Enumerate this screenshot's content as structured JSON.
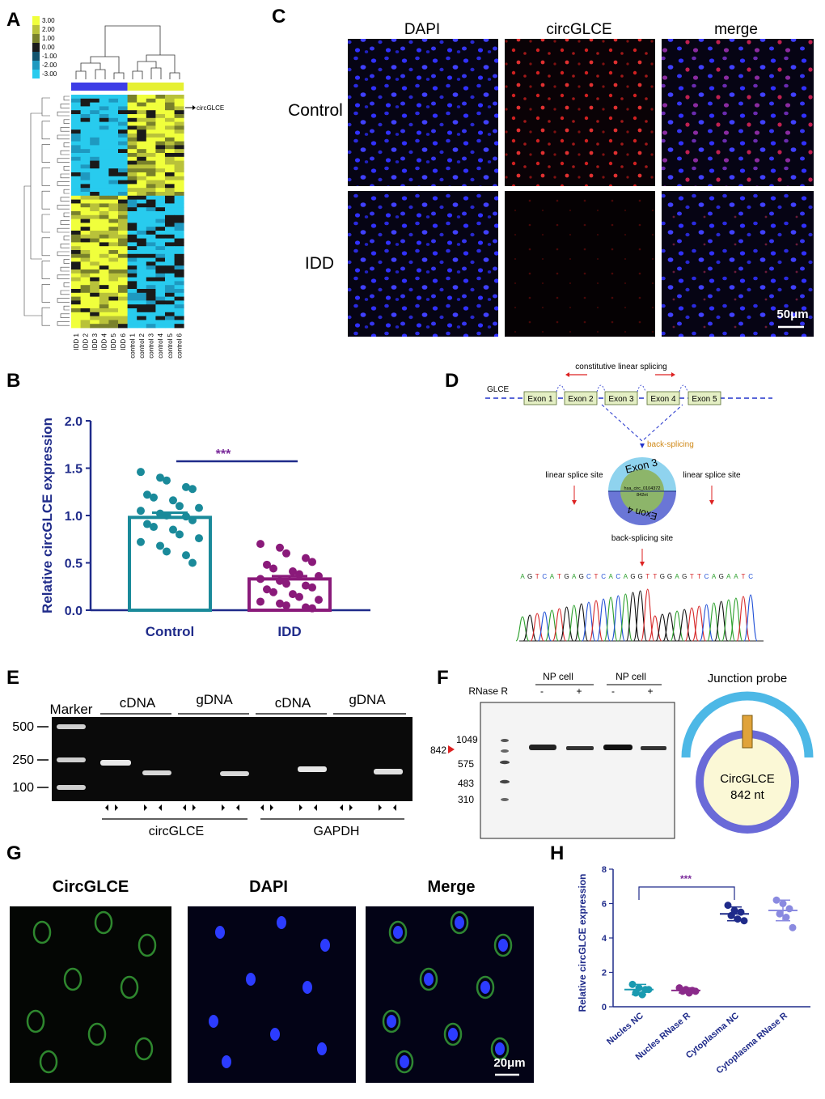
{
  "figure": {
    "panel_letters": [
      "A",
      "B",
      "C",
      "D",
      "E",
      "F",
      "G",
      "H"
    ],
    "heatmap": {
      "legend_values": [
        "3.00",
        "2.00",
        "1.00",
        "0.00",
        "-1.00",
        "-2.00",
        "-3.00"
      ],
      "legend_colors": [
        "#f0ff3c",
        "#b9c23a",
        "#79812b",
        "#1a1a1a",
        "#12546e",
        "#1e99c0",
        "#28cbee"
      ],
      "row_label": "circGLCE",
      "columns": [
        "IDD 1",
        "IDD 2",
        "IDD 3",
        "IDD 4",
        "IDD 5",
        "IDD 6",
        "control 1",
        "control 2",
        "control 3",
        "control 4",
        "control 5",
        "control 6"
      ],
      "group_colors": {
        "IDD": "#3d3de6",
        "control": "#e6f032"
      }
    },
    "panel_b": {
      "chart_data": {
        "type": "bar",
        "categories": [
          "Control",
          "IDD"
        ],
        "values": [
          0.98,
          0.33
        ],
        "error": [
          0.05,
          0.03
        ],
        "ylabel": "Relative circGLCE expression",
        "ylim": [
          0,
          2.0
        ],
        "yticks": [
          "0.0",
          "0.5",
          "1.0",
          "1.5",
          "2.0"
        ],
        "significance": "***",
        "colors": {
          "Control": "#1a8a9a",
          "IDD": "#8a1a7a",
          "axis": "#1f2b8a",
          "sig": "#7a2a9a"
        },
        "points": {
          "Control": [
            1.46,
            1.4,
            1.37,
            1.3,
            1.28,
            1.22,
            1.19,
            1.16,
            1.1,
            1.08,
            1.05,
            1.02,
            1.0,
            0.99,
            0.95,
            0.91,
            0.88,
            0.85,
            0.8,
            0.76,
            0.72,
            0.68,
            0.62,
            0.58,
            0.5
          ],
          "IDD": [
            0.7,
            0.66,
            0.6,
            0.55,
            0.51,
            0.48,
            0.44,
            0.41,
            0.38,
            0.36,
            0.33,
            0.31,
            0.28,
            0.26,
            0.24,
            0.22,
            0.19,
            0.17,
            0.14,
            0.11,
            0.09,
            0.07,
            0.05,
            0.03,
            0.02
          ]
        }
      }
    },
    "panel_c": {
      "columns": [
        "DAPI",
        "circGLCE",
        "merge"
      ],
      "rows": [
        "Control",
        "IDD"
      ],
      "scale": "50μm"
    },
    "panel_d": {
      "gene": "GLCE",
      "top_label": "constitutive linear splicing",
      "exons": [
        "Exon 1",
        "Exon 2",
        "Exon 3",
        "Exon 4",
        "Exon 5"
      ],
      "back_splicing": "back-splicing",
      "linear_left": "linear splice site",
      "linear_right": "linear splice site",
      "circle_top": "Exon 3",
      "circle_bottom": "Exon 4",
      "circ_id": "hsa_circ_0104372",
      "circ_len": "842nt",
      "bs_site": "back-splicing site",
      "sequence": "AGTCATGAGCTCACAGGTTGGAGTTCAGAATC",
      "base_colors": {
        "A": "#2ca02c",
        "G": "#111111",
        "T": "#d62728",
        "C": "#1f4fd6"
      }
    },
    "panel_e": {
      "marker": "Marker",
      "ladder": [
        "500",
        "250",
        "100"
      ],
      "groups": [
        "cDNA",
        "gDNA",
        "cDNA",
        "gDNA"
      ],
      "genes": [
        "circGLCE",
        "GAPDH"
      ]
    },
    "panel_f": {
      "rnase": "RNase R",
      "cell_label": "NP cell",
      "signs": [
        "-",
        "+",
        "-",
        "+"
      ],
      "sizes": [
        "1049",
        "575",
        "483",
        "310"
      ],
      "arrow_size": "842",
      "probe_title": "Junction probe",
      "circ_name": "CircGLCE",
      "circ_nt": "842 nt"
    },
    "panel_g": {
      "columns": [
        "CircGLCE",
        "DAPI",
        "Merge"
      ],
      "scale": "20μm"
    },
    "panel_h": {
      "chart_data": {
        "type": "scatter",
        "categories": [
          "Nucles NC",
          "Nucles RNase R",
          "Cytoplasma NC",
          "Cytoplasma RNase R"
        ],
        "means": [
          1.0,
          0.95,
          5.4,
          5.6
        ],
        "sd": [
          0.3,
          0.15,
          0.4,
          0.6
        ],
        "ylabel": "Relative circGLCE expression",
        "ylim": [
          0,
          8
        ],
        "yticks": [
          "0",
          "2",
          "4",
          "6",
          "8"
        ],
        "significance": "***",
        "colors": [
          "#1a9ab0",
          "#8a2a8a",
          "#1f2b8a",
          "#8a8ae0"
        ],
        "points": [
          [
            1.3,
            1.1,
            1.0,
            0.8,
            0.7,
            1.0
          ],
          [
            1.1,
            1.0,
            0.95,
            0.9,
            0.8,
            0.9
          ],
          [
            5.9,
            5.6,
            5.5,
            5.3,
            5.1,
            5.0
          ],
          [
            6.2,
            6.0,
            5.7,
            5.4,
            5.2,
            4.6
          ]
        ]
      }
    }
  }
}
